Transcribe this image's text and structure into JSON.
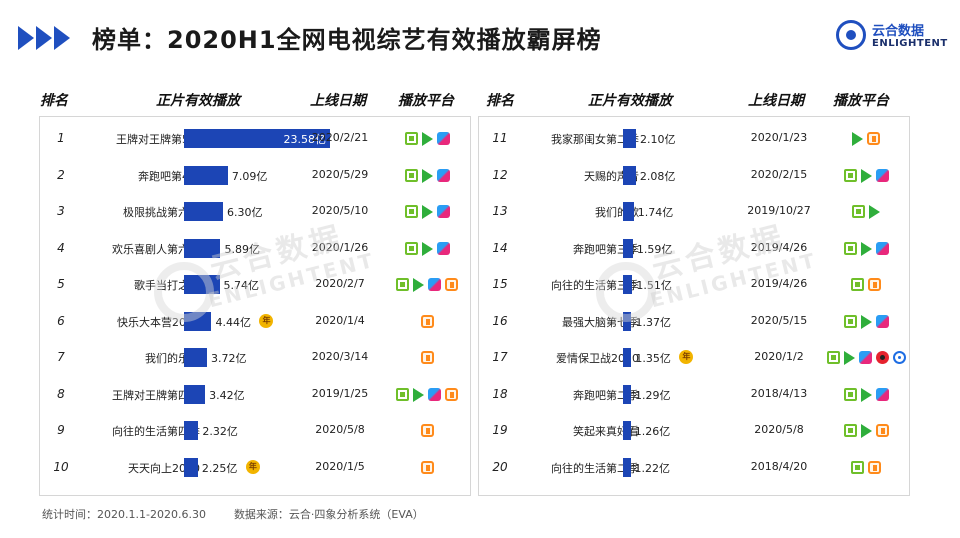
{
  "header": {
    "title": "榜单：2020H1全网电视综艺有效播放霸屏榜",
    "logo_cn": "云合数据",
    "logo_en": "ENLIGHTENT"
  },
  "columns": {
    "rank": "排名",
    "plays": "正片有效播放",
    "date": "上线日期",
    "platform": "播放平台"
  },
  "watermark": {
    "cn": "云合数据",
    "en": "ENLIGHTENT"
  },
  "badge_label": "年",
  "chart_data": {
    "type": "bar",
    "unit": "亿",
    "xlim": [
      0,
      23.58
    ],
    "rows": [
      {
        "rank": "1",
        "name": "王牌对王牌第5季",
        "value": 23.58,
        "label": "23.58亿",
        "date": "2020/2/21",
        "platforms": [
          "iqiyi",
          "tencent",
          "youku"
        ],
        "badge": false
      },
      {
        "rank": "2",
        "name": "奔跑吧第4季",
        "value": 7.09,
        "label": "7.09亿",
        "date": "2020/5/29",
        "platforms": [
          "iqiyi",
          "tencent",
          "youku"
        ],
        "badge": false
      },
      {
        "rank": "3",
        "name": "极限挑战第六季",
        "value": 6.3,
        "label": "6.30亿",
        "date": "2020/5/10",
        "platforms": [
          "iqiyi",
          "tencent",
          "youku"
        ],
        "badge": false
      },
      {
        "rank": "4",
        "name": "欢乐喜剧人第六季",
        "value": 5.89,
        "label": "5.89亿",
        "date": "2020/1/26",
        "platforms": [
          "iqiyi",
          "tencent",
          "youku"
        ],
        "badge": false
      },
      {
        "rank": "5",
        "name": "歌手当打之年",
        "value": 5.74,
        "label": "5.74亿",
        "date": "2020/2/7",
        "platforms": [
          "iqiyi",
          "tencent",
          "youku",
          "mango"
        ],
        "badge": false
      },
      {
        "rank": "6",
        "name": "快乐大本营2020",
        "value": 4.44,
        "label": "4.44亿",
        "date": "2020/1/4",
        "platforms": [
          "mango"
        ],
        "badge": true
      },
      {
        "rank": "7",
        "name": "我们的乐队",
        "value": 3.72,
        "label": "3.72亿",
        "date": "2020/3/14",
        "platforms": [
          "mango"
        ],
        "badge": false
      },
      {
        "rank": "8",
        "name": "王牌对王牌第四季",
        "value": 3.42,
        "label": "3.42亿",
        "date": "2019/1/25",
        "platforms": [
          "iqiyi",
          "tencent",
          "youku",
          "mango"
        ],
        "badge": false
      },
      {
        "rank": "9",
        "name": "向往的生活第四季",
        "value": 2.32,
        "label": "2.32亿",
        "date": "2020/5/8",
        "platforms": [
          "mango"
        ],
        "badge": false
      },
      {
        "rank": "10",
        "name": "天天向上2020",
        "value": 2.25,
        "label": "2.25亿",
        "date": "2020/1/5",
        "platforms": [
          "mango"
        ],
        "badge": true
      },
      {
        "rank": "11",
        "name": "我家那闺女第二季",
        "value": 2.1,
        "label": "2.10亿",
        "date": "2020/1/23",
        "platforms": [
          "tencent",
          "mango"
        ],
        "badge": false
      },
      {
        "rank": "12",
        "name": "天赐的声音",
        "value": 2.08,
        "label": "2.08亿",
        "date": "2020/2/15",
        "platforms": [
          "iqiyi",
          "tencent",
          "youku"
        ],
        "badge": false
      },
      {
        "rank": "13",
        "name": "我们的歌",
        "value": 1.74,
        "label": "1.74亿",
        "date": "2019/10/27",
        "platforms": [
          "iqiyi",
          "tencent"
        ],
        "badge": false
      },
      {
        "rank": "14",
        "name": "奔跑吧第三季",
        "value": 1.59,
        "label": "1.59亿",
        "date": "2019/4/26",
        "platforms": [
          "iqiyi",
          "tencent",
          "youku"
        ],
        "badge": false
      },
      {
        "rank": "15",
        "name": "向往的生活第三季",
        "value": 1.51,
        "label": "1.51亿",
        "date": "2019/4/26",
        "platforms": [
          "iqiyi",
          "mango"
        ],
        "badge": false
      },
      {
        "rank": "16",
        "name": "最强大脑第七季",
        "value": 1.37,
        "label": "1.37亿",
        "date": "2020/5/15",
        "platforms": [
          "iqiyi",
          "tencent",
          "youku"
        ],
        "badge": false
      },
      {
        "rank": "17",
        "name": "爱情保卫战2020",
        "value": 1.35,
        "label": "1.35亿",
        "date": "2020/1/2",
        "platforms": [
          "iqiyi",
          "tencent",
          "youku",
          "weibo",
          "pptv"
        ],
        "badge": true
      },
      {
        "rank": "18",
        "name": "奔跑吧第二季",
        "value": 1.29,
        "label": "1.29亿",
        "date": "2018/4/13",
        "platforms": [
          "iqiyi",
          "tencent",
          "youku"
        ],
        "badge": false
      },
      {
        "rank": "19",
        "name": "笑起来真好看",
        "value": 1.26,
        "label": "1.26亿",
        "date": "2020/5/8",
        "platforms": [
          "iqiyi",
          "tencent",
          "mango"
        ],
        "badge": false
      },
      {
        "rank": "20",
        "name": "向往的生活第二季",
        "value": 1.22,
        "label": "1.22亿",
        "date": "2018/4/20",
        "platforms": [
          "iqiyi",
          "mango"
        ],
        "badge": false
      }
    ]
  },
  "footer": {
    "period": "统计时间：2020.1.1-2020.6.30",
    "source": "数据来源：云合·四象分析系统（EVA）"
  },
  "colors": {
    "accent": "#1f4fbf",
    "bar": "#1c45b5",
    "badge": "#f2b400"
  }
}
